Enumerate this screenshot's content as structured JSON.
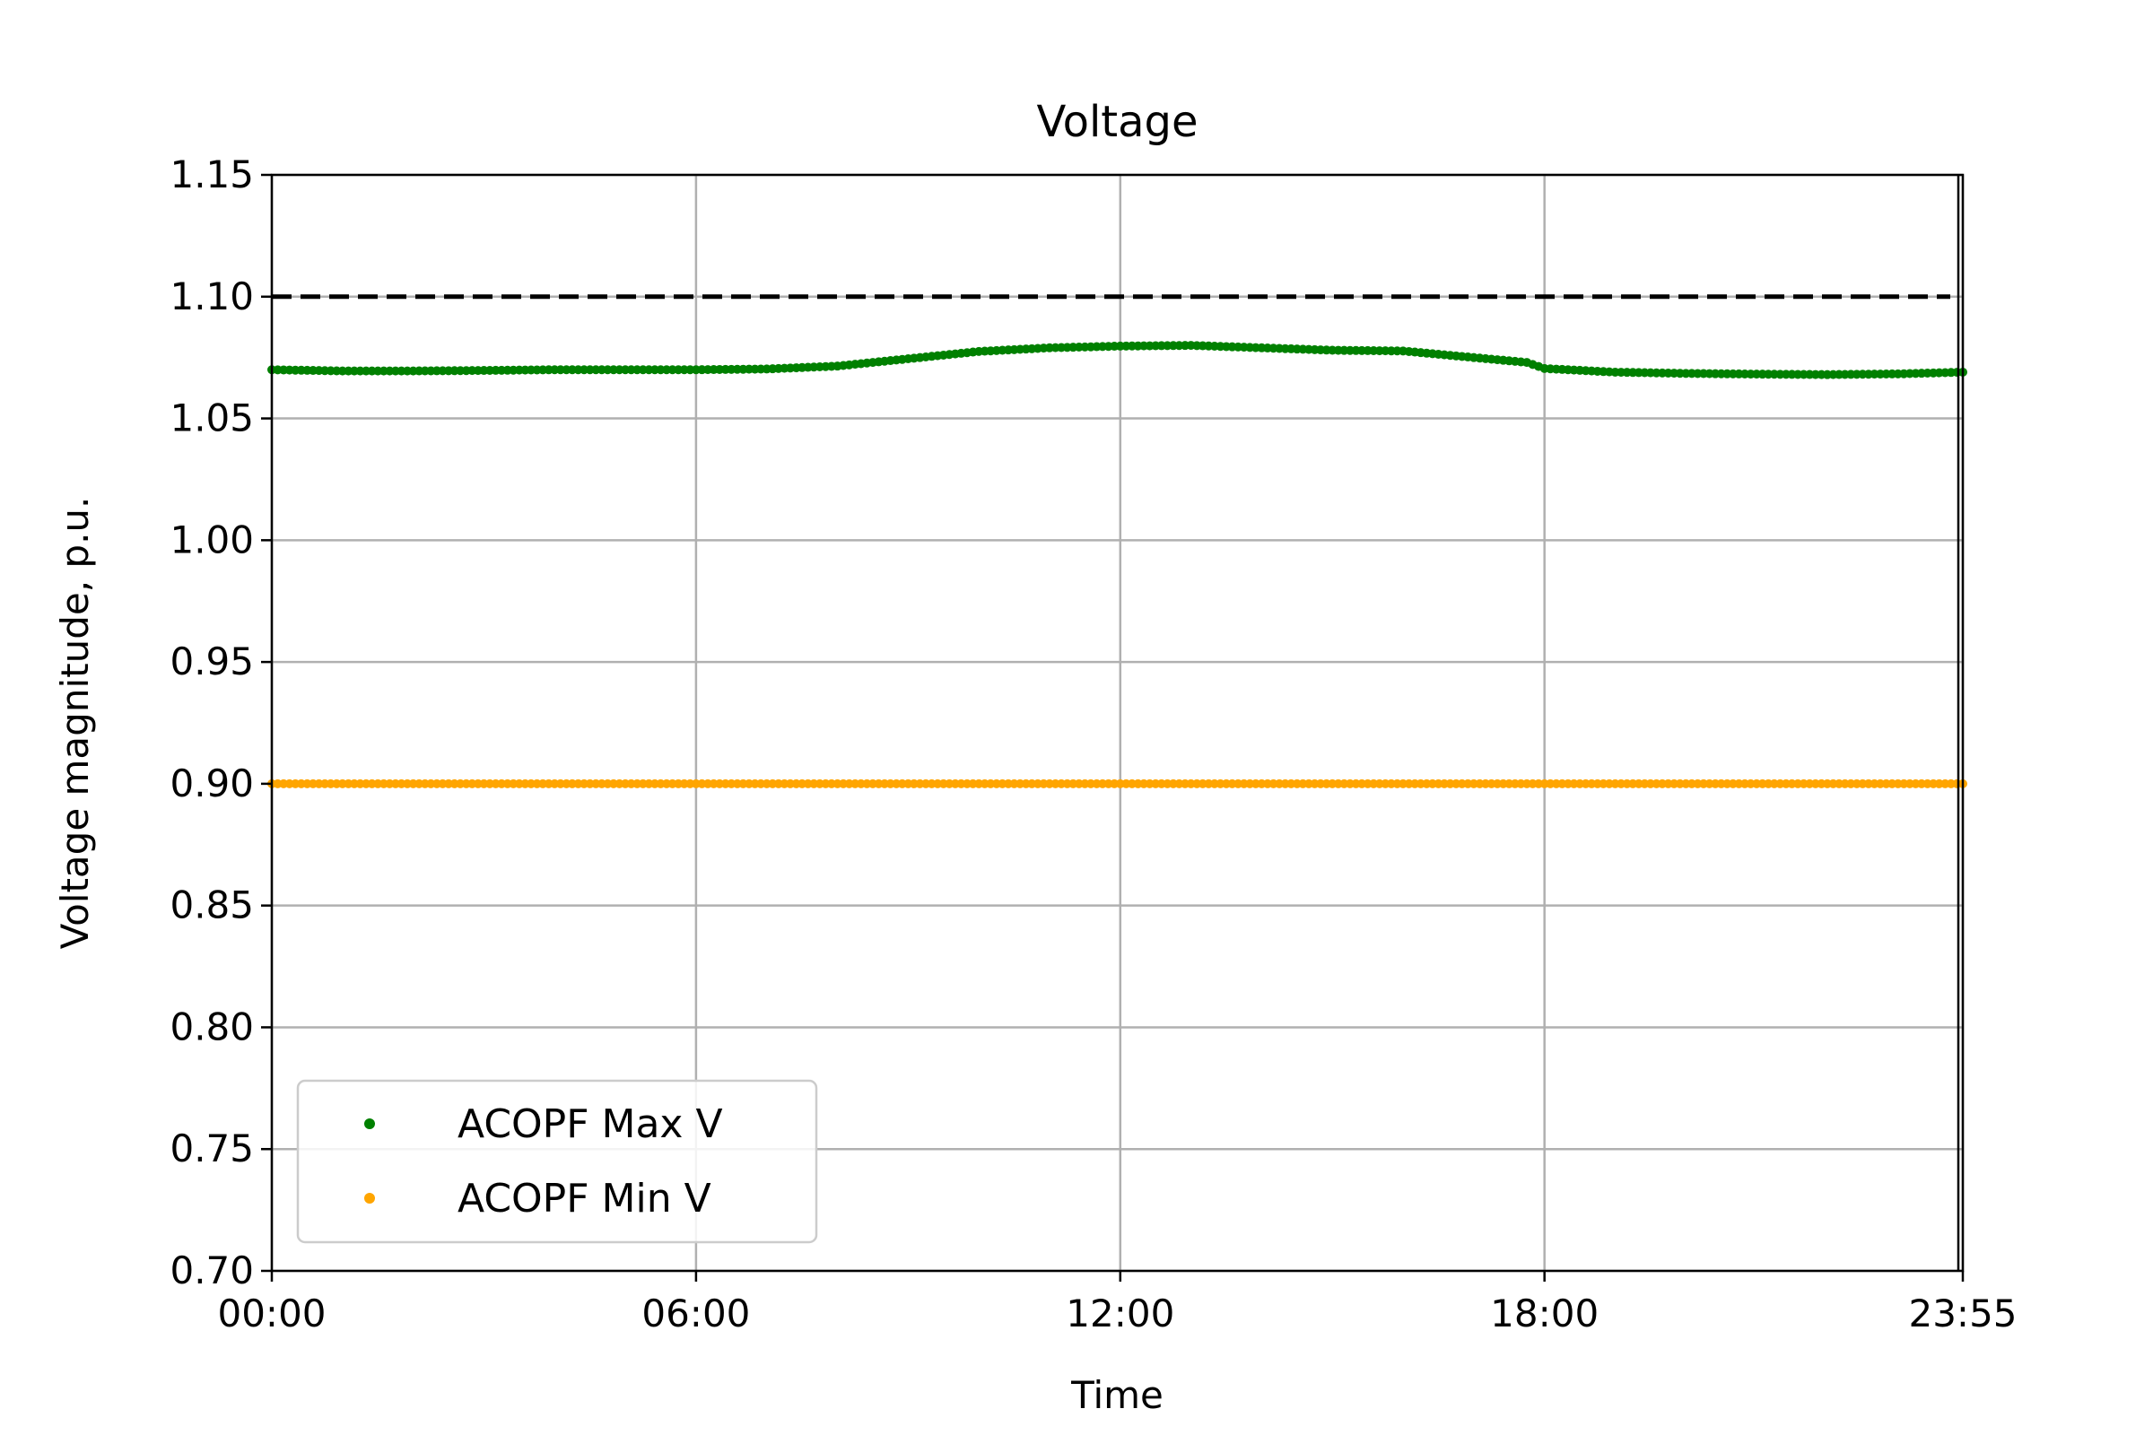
{
  "chart_data": {
    "type": "scatter",
    "title": "Voltage",
    "xlabel": "Time",
    "ylabel": "Voltage magnitude, p.u.",
    "xlim": [
      "00:00",
      "23:55"
    ],
    "ylim": [
      0.7,
      1.15
    ],
    "x_ticks": [
      "00:00",
      "06:00",
      "12:00",
      "18:00",
      "23:55"
    ],
    "y_ticks": [
      "0.70",
      "0.75",
      "0.80",
      "0.85",
      "0.90",
      "0.95",
      "1.00",
      "1.05",
      "1.10",
      "1.15"
    ],
    "grid": true,
    "legend_position": "lower-left",
    "limit_lines": [
      {
        "y": 1.1,
        "color": "#000000",
        "style": "dashed"
      },
      {
        "y": 0.9,
        "color": "#000000",
        "style": "dashed"
      }
    ],
    "series": [
      {
        "name": "ACOPF Max V",
        "color": "#008000",
        "points": [
          [
            "00:00",
            1.07
          ],
          [
            "01:00",
            1.0695
          ],
          [
            "02:00",
            1.0695
          ],
          [
            "03:00",
            1.0697
          ],
          [
            "04:00",
            1.07
          ],
          [
            "05:00",
            1.07
          ],
          [
            "06:00",
            1.07
          ],
          [
            "07:00",
            1.0703
          ],
          [
            "08:00",
            1.0715
          ],
          [
            "09:00",
            1.0745
          ],
          [
            "10:00",
            1.0775
          ],
          [
            "11:00",
            1.079
          ],
          [
            "12:00",
            1.0797
          ],
          [
            "13:00",
            1.08
          ],
          [
            "14:00",
            1.079
          ],
          [
            "15:00",
            1.078
          ],
          [
            "16:00",
            1.0777
          ],
          [
            "17:00",
            1.075
          ],
          [
            "17:45",
            1.073
          ],
          [
            "18:00",
            1.0705
          ],
          [
            "19:00",
            1.069
          ],
          [
            "20:00",
            1.0685
          ],
          [
            "21:00",
            1.0682
          ],
          [
            "22:00",
            1.068
          ],
          [
            "23:00",
            1.0683
          ],
          [
            "23:55",
            1.069
          ]
        ]
      },
      {
        "name": "ACOPF Min V",
        "color": "#FFA500",
        "points": [
          [
            "00:00",
            0.9
          ],
          [
            "23:55",
            0.9
          ]
        ]
      }
    ]
  }
}
